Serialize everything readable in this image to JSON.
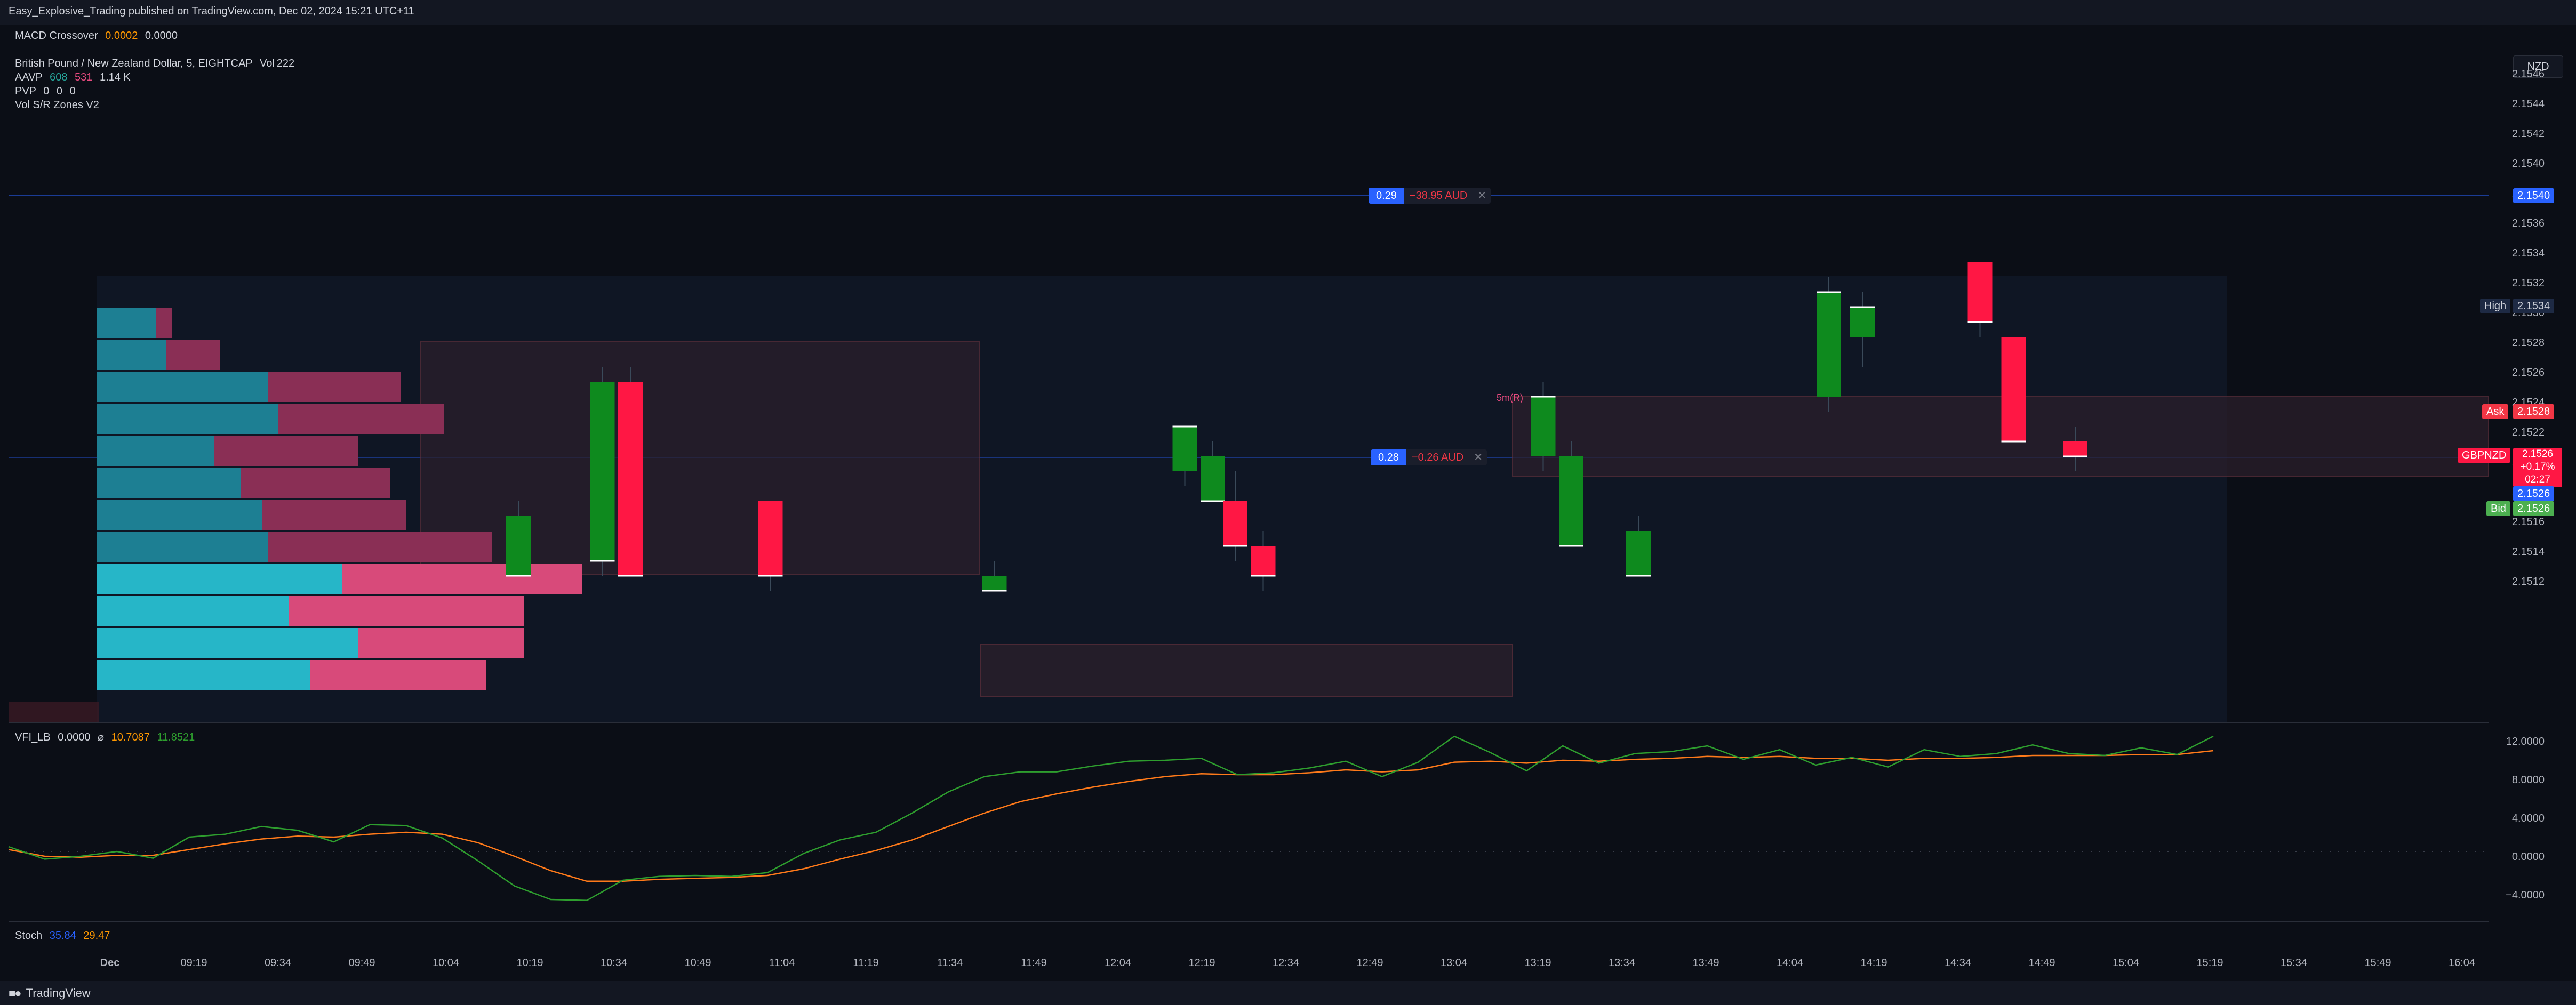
{
  "header": {
    "publisher": "Easy_Explosive_Trading published on TradingView.com, Dec 02, 2024 15:21 UTC+11"
  },
  "legend": {
    "macd": {
      "name": "MACD Crossover",
      "v1": "0.0002",
      "v2": "0.0000"
    },
    "symbol": {
      "desc": "British Pound / New Zealand Dollar, 5, EIGHTCAP",
      "vol_label": "Vol",
      "vol_value": "222"
    },
    "aavp": {
      "name": "AAVP",
      "v1": "608",
      "v2": "531",
      "v3": "1.14 K"
    },
    "pvp": {
      "name": "PVP",
      "v1": "0",
      "v2": "0",
      "v3": "0"
    },
    "volsr": {
      "name": "Vol S/R Zones V2"
    },
    "vfi": {
      "name": "VFI_LB",
      "v1": "0.0000",
      "sym": "⌀",
      "v2": "10.7087",
      "v3": "11.8521"
    },
    "stoch": {
      "name": "Stoch",
      "v1": "35.84",
      "v2": "29.47"
    }
  },
  "currency_button": "NZD",
  "price_axis": [
    "2.1546",
    "2.1544",
    "2.1542",
    "2.1540",
    "2.1538",
    "2.1536",
    "2.1534",
    "2.1532",
    "2.1530",
    "2.1528",
    "2.1526",
    "2.1524",
    "2.1522",
    "2.1520",
    "2.1518",
    "2.1516",
    "2.1514",
    "2.1512"
  ],
  "vfi_axis": [
    "12.0000",
    "8.0000",
    "4.0000",
    "0.0000",
    "−4.0000"
  ],
  "price_tags": {
    "order_line": "2.1540",
    "high_label": "High",
    "high_value": "2.1534",
    "ask_label": "Ask",
    "ask_value": "2.1528",
    "symbol_label": "GBPNZD",
    "last_value": "2.1526",
    "change": "+0.17%",
    "countdown": "02:27",
    "blue_value": "2.1526",
    "bid_label": "Bid",
    "bid_value": "2.1526"
  },
  "positions": [
    {
      "qty": "0.29",
      "pl": "−38.95 AUD",
      "close": "✕"
    },
    {
      "qty": "0.28",
      "pl": "−0.26 AUD",
      "close": "✕"
    }
  ],
  "zone_label": "5m(R)",
  "time_axis": [
    "Dec",
    "09:19",
    "09:34",
    "09:49",
    "10:04",
    "10:19",
    "10:34",
    "10:49",
    "11:04",
    "11:19",
    "11:34",
    "11:49",
    "12:04",
    "12:19",
    "12:34",
    "12:49",
    "13:04",
    "13:19",
    "13:34",
    "13:49",
    "14:04",
    "14:19",
    "14:34",
    "14:49",
    "15:04",
    "15:19",
    "15:34",
    "15:49",
    "16:04"
  ],
  "footer": {
    "brand": "TradingView"
  },
  "colors": {
    "up": "#089981",
    "down": "#f23645",
    "green_candle": "#0e8a1e",
    "red_candle": "#ff1744",
    "cyan": "#26c6da",
    "pink": "#e84a7f",
    "vfi_line": "#2e9e2e",
    "vfi_signal": "#ff7a1a"
  },
  "chart_data": [
    {
      "type": "candlestick",
      "ylim": [
        2.1511,
        2.1547
      ],
      "candles": [
        {
          "t": "10:32",
          "o": 2.1525,
          "h": 2.1526,
          "l": 2.1512,
          "c": 2.1513,
          "dir": "up"
        },
        {
          "t": "10:37",
          "o": 2.1525,
          "h": 2.1526,
          "l": 2.1512,
          "c": 2.1512,
          "dir": "down"
        },
        {
          "t": "10:17",
          "o": 2.1516,
          "h": 2.1517,
          "l": 2.1512,
          "c": 2.1512,
          "dir": "up"
        },
        {
          "t": "11:02",
          "o": 2.1517,
          "h": 2.1517,
          "l": 2.1511,
          "c": 2.1512,
          "dir": "down"
        },
        {
          "t": "11:42",
          "o": 2.1512,
          "h": 2.1513,
          "l": 2.1511,
          "c": 2.1511,
          "dir": "up"
        },
        {
          "t": "12:16",
          "o": 2.1519,
          "h": 2.1522,
          "l": 2.1518,
          "c": 2.1522,
          "dir": "up"
        },
        {
          "t": "12:21",
          "o": 2.152,
          "h": 2.1521,
          "l": 2.1517,
          "c": 2.1517,
          "dir": "up"
        },
        {
          "t": "12:25",
          "o": 2.1517,
          "h": 2.1519,
          "l": 2.1513,
          "c": 2.1514,
          "dir": "down"
        },
        {
          "t": "12:30",
          "o": 2.1514,
          "h": 2.1515,
          "l": 2.1511,
          "c": 2.1512,
          "dir": "down"
        },
        {
          "t": "13:20",
          "o": 2.152,
          "h": 2.1525,
          "l": 2.1519,
          "c": 2.1524,
          "dir": "up"
        },
        {
          "t": "13:25",
          "o": 2.152,
          "h": 2.1521,
          "l": 2.1514,
          "c": 2.1514,
          "dir": "up"
        },
        {
          "t": "13:37",
          "o": 2.1515,
          "h": 2.1516,
          "l": 2.1512,
          "c": 2.1512,
          "dir": "up"
        },
        {
          "t": "14:11",
          "o": 2.1524,
          "h": 2.1532,
          "l": 2.1523,
          "c": 2.1531,
          "dir": "up"
        },
        {
          "t": "14:17",
          "o": 2.1528,
          "h": 2.1531,
          "l": 2.1526,
          "c": 2.153,
          "dir": "up"
        },
        {
          "t": "14:38",
          "o": 2.1533,
          "h": 2.1534,
          "l": 2.1528,
          "c": 2.1529,
          "dir": "down"
        },
        {
          "t": "14:44",
          "o": 2.1528,
          "h": 2.1528,
          "l": 2.1521,
          "c": 2.1521,
          "dir": "down"
        },
        {
          "t": "14:55",
          "o": 2.1521,
          "h": 2.1522,
          "l": 2.1519,
          "c": 2.152,
          "dir": "down"
        }
      ]
    },
    {
      "type": "line",
      "name": "VFI_LB",
      "ylim": [
        -6,
        13
      ],
      "series": [
        {
          "name": "VFI",
          "values": [
            0.5,
            -0.8,
            -0.5,
            0.0,
            -0.7,
            1.5,
            1.8,
            2.6,
            2.2,
            1.0,
            2.8,
            2.7,
            1.4,
            -1.0,
            -3.6,
            -5.0,
            -5.1,
            -3.0,
            -2.6,
            -2.5,
            -2.6,
            -2.2,
            -0.2,
            1.2,
            2.0,
            4.0,
            6.2,
            7.8,
            8.3,
            8.3,
            8.9,
            9.4,
            9.5,
            9.7,
            8.0,
            8.2,
            8.7,
            9.4,
            7.8,
            9.3,
            12.0,
            10.3,
            8.4,
            11.0,
            9.2,
            10.2,
            10.4,
            11.0,
            9.6,
            10.6,
            9.0,
            9.8,
            8.8,
            10.6,
            9.9,
            10.2,
            11.1,
            10.2,
            10.0,
            10.8,
            10.1,
            12.0
          ]
        },
        {
          "name": "Signal",
          "values": [
            0.2,
            -0.5,
            -0.6,
            -0.4,
            -0.4,
            0.2,
            0.8,
            1.3,
            1.6,
            1.5,
            1.8,
            2.0,
            1.8,
            0.9,
            -0.5,
            -2.0,
            -3.1,
            -3.1,
            -2.9,
            -2.8,
            -2.7,
            -2.5,
            -1.8,
            -0.8,
            0.1,
            1.2,
            2.6,
            4.0,
            5.2,
            6.0,
            6.7,
            7.3,
            7.8,
            8.1,
            8.0,
            8.0,
            8.2,
            8.5,
            8.3,
            8.5,
            9.3,
            9.4,
            9.2,
            9.5,
            9.4,
            9.6,
            9.7,
            9.9,
            9.8,
            9.9,
            9.7,
            9.7,
            9.5,
            9.7,
            9.7,
            9.8,
            10.0,
            10.0,
            10.0,
            10.1,
            10.1,
            10.5
          ]
        }
      ]
    }
  ]
}
